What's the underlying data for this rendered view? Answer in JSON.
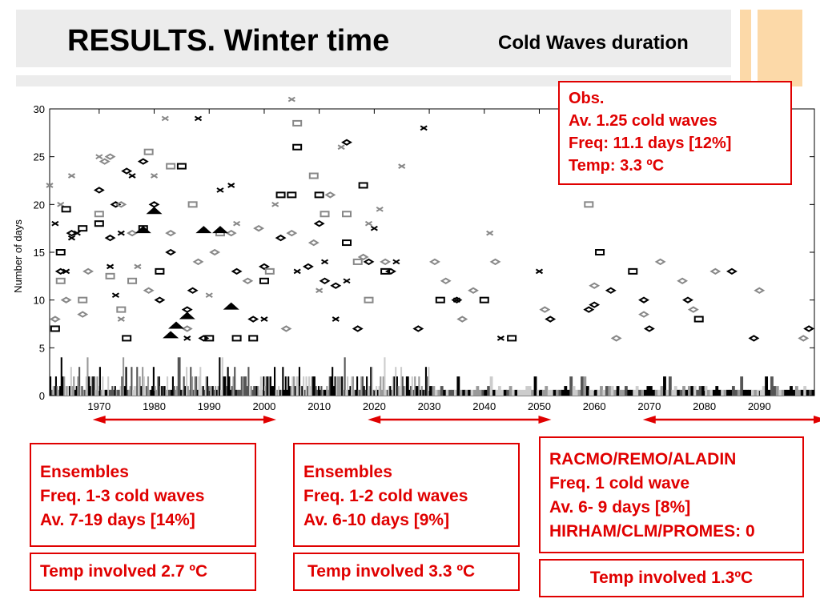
{
  "slide": {
    "title": "RESULTS. Winter time",
    "subtitle": "Cold Waves duration",
    "colors": {
      "accent_red": "#e00000",
      "header_gray": "#ececec",
      "deco_orange": "#fcd9a8"
    }
  },
  "obs_box": {
    "lines": [
      "Obs.",
      "Av. 1.25 cold waves",
      "Freq: 11.1 days [12%]",
      "Temp: 3.3 ºC"
    ]
  },
  "ensembles_1": {
    "lines": [
      "Ensembles",
      "Freq. 1-3 cold waves",
      "Av. 7-19 days [14%]"
    ]
  },
  "ensembles_2": {
    "lines": [
      "Ensembles",
      "Freq. 1-2 cold waves",
      "Av. 6-10 days [9%]"
    ]
  },
  "rcm_box": {
    "lines": [
      "RACMO/REMO/ALADIN",
      "Freq. 1 cold wave",
      "Av. 6- 9 days [8%]",
      "HIRHAM/CLM/PROMES: 0"
    ]
  },
  "temp_1": {
    "text": "Temp involved 2.7  ºC"
  },
  "temp_2": {
    "text": "Temp involved 3.3 ºC"
  },
  "temp_3": {
    "text": "Temp involved 1.3ºC"
  },
  "chart_data": {
    "type": "scatter",
    "title": "",
    "ylabel": "Number of days",
    "xlabel": "",
    "xlim": [
      1961,
      2100
    ],
    "ylim": [
      0,
      30
    ],
    "x_ticks": [
      "1970",
      "1980",
      "1990",
      "2000",
      "2010",
      "2020",
      "2030",
      "2040",
      "2050",
      "2060",
      "2070",
      "2080",
      "2090"
    ],
    "y_ticks": [
      "0",
      "5",
      "10",
      "15",
      "20",
      "25",
      "30"
    ],
    "periods": [
      [
        1971,
        2000
      ],
      [
        2021,
        2050
      ],
      [
        2071,
        2100
      ]
    ],
    "series": [
      {
        "marker": "x",
        "color": "#000000",
        "points": [
          [
            1962,
            18
          ],
          [
            1964,
            13
          ],
          [
            1965,
            16.5
          ],
          [
            1966,
            17
          ],
          [
            1972,
            13.5
          ],
          [
            1973,
            10.5
          ],
          [
            1974,
            17
          ],
          [
            1976,
            23
          ],
          [
            1986,
            6
          ],
          [
            1988,
            29
          ],
          [
            1992,
            21.5
          ],
          [
            1994,
            22
          ],
          [
            2000,
            8
          ],
          [
            2006,
            13
          ],
          [
            2011,
            14
          ],
          [
            2013,
            8
          ],
          [
            2015,
            12
          ],
          [
            2020,
            17.5
          ],
          [
            2024,
            14
          ],
          [
            2029,
            28
          ],
          [
            2035,
            10
          ],
          [
            2043,
            6
          ],
          [
            2050,
            13
          ],
          [
            2093,
            24
          ]
        ]
      },
      {
        "marker": "x",
        "color": "#888888",
        "points": [
          [
            1961,
            22
          ],
          [
            1963,
            20
          ],
          [
            1965,
            23
          ],
          [
            1970,
            25
          ],
          [
            1974,
            8
          ],
          [
            1977,
            13.5
          ],
          [
            1980,
            23
          ],
          [
            1982,
            29
          ],
          [
            1990,
            10.5
          ],
          [
            1995,
            18
          ],
          [
            2002,
            20
          ],
          [
            2005,
            31
          ],
          [
            2010,
            11
          ],
          [
            2014,
            26
          ],
          [
            2019,
            18
          ],
          [
            2021,
            19.5
          ],
          [
            2025,
            24
          ],
          [
            2041,
            17
          ]
        ]
      },
      {
        "marker": "diamond",
        "color": "#000000",
        "points": [
          [
            1963,
            13
          ],
          [
            1965,
            17
          ],
          [
            1970,
            21.5
          ],
          [
            1972,
            16.5
          ],
          [
            1973,
            20
          ],
          [
            1975,
            23.5
          ],
          [
            1978,
            24.5
          ],
          [
            1980,
            20
          ],
          [
            1981,
            10
          ],
          [
            1983,
            15
          ],
          [
            1986,
            9
          ],
          [
            1987,
            11
          ],
          [
            1989,
            6
          ],
          [
            1995,
            13
          ],
          [
            1998,
            8
          ],
          [
            2000,
            13.5
          ],
          [
            2003,
            16.5
          ],
          [
            2008,
            13.5
          ],
          [
            2010,
            18
          ],
          [
            2011,
            12
          ],
          [
            2013,
            11.5
          ],
          [
            2015,
            26.5
          ],
          [
            2017,
            7
          ],
          [
            2019,
            14
          ],
          [
            2023,
            13
          ],
          [
            2028,
            7
          ],
          [
            2035,
            10
          ],
          [
            2052,
            8
          ],
          [
            2059,
            9
          ],
          [
            2060,
            9.5
          ],
          [
            2063,
            11
          ],
          [
            2069,
            10
          ],
          [
            2070,
            7
          ],
          [
            2072,
            22.5
          ],
          [
            2077,
            10
          ],
          [
            2085,
            13
          ],
          [
            2089,
            6
          ],
          [
            2099,
            7
          ]
        ]
      },
      {
        "marker": "diamond",
        "color": "#888888",
        "points": [
          [
            1962,
            8
          ],
          [
            1964,
            10
          ],
          [
            1967,
            8.5
          ],
          [
            1968,
            13
          ],
          [
            1971,
            24.5
          ],
          [
            1972,
            25
          ],
          [
            1974,
            20
          ],
          [
            1976,
            17
          ],
          [
            1979,
            11
          ],
          [
            1983,
            17
          ],
          [
            1986,
            7
          ],
          [
            1988,
            14
          ],
          [
            1991,
            15
          ],
          [
            1994,
            17
          ],
          [
            1997,
            12
          ],
          [
            1999,
            17.5
          ],
          [
            2004,
            7
          ],
          [
            2005,
            17
          ],
          [
            2009,
            16
          ],
          [
            2012,
            21
          ],
          [
            2018,
            14.5
          ],
          [
            2022,
            14
          ],
          [
            2031,
            14
          ],
          [
            2033,
            12
          ],
          [
            2036,
            8
          ],
          [
            2038,
            11
          ],
          [
            2042,
            14
          ],
          [
            2051,
            9
          ],
          [
            2060,
            11.5
          ],
          [
            2064,
            6
          ],
          [
            2069,
            8.5
          ],
          [
            2072,
            14
          ],
          [
            2076,
            12
          ],
          [
            2078,
            9
          ],
          [
            2082,
            13
          ],
          [
            2090,
            11
          ],
          [
            2098,
            6
          ]
        ]
      },
      {
        "marker": "square",
        "color": "#000000",
        "points": [
          [
            1962,
            7
          ],
          [
            1963,
            15
          ],
          [
            1964,
            19.5
          ],
          [
            1967,
            17.5
          ],
          [
            1970,
            18
          ],
          [
            1975,
            6
          ],
          [
            1978,
            17.5
          ],
          [
            1981,
            13
          ],
          [
            1985,
            24
          ],
          [
            1990,
            6
          ],
          [
            1995,
            6
          ],
          [
            1998,
            6
          ],
          [
            2000,
            12
          ],
          [
            2003,
            21
          ],
          [
            2005,
            21
          ],
          [
            2006,
            26
          ],
          [
            2010,
            21
          ],
          [
            2015,
            16
          ],
          [
            2018,
            22
          ],
          [
            2022,
            13
          ],
          [
            2032,
            10
          ],
          [
            2040,
            10
          ],
          [
            2045,
            6
          ],
          [
            2061,
            15
          ],
          [
            2067,
            13
          ],
          [
            2079,
            8
          ]
        ]
      },
      {
        "marker": "square",
        "color": "#888888",
        "points": [
          [
            1963,
            12
          ],
          [
            1967,
            10
          ],
          [
            1970,
            19
          ],
          [
            1972,
            12.5
          ],
          [
            1974,
            9
          ],
          [
            1976,
            12
          ],
          [
            1979,
            25.5
          ],
          [
            1983,
            24
          ],
          [
            1987,
            20
          ],
          [
            1992,
            17
          ],
          [
            2001,
            13
          ],
          [
            2006,
            28.5
          ],
          [
            2009,
            23
          ],
          [
            2011,
            19
          ],
          [
            2015,
            19
          ],
          [
            2017,
            14
          ],
          [
            2019,
            10
          ],
          [
            2059,
            20
          ]
        ]
      },
      {
        "marker": "triangle",
        "color": "#000000",
        "points": [
          [
            1978,
            17
          ],
          [
            1980,
            19
          ],
          [
            1983,
            6
          ],
          [
            1984,
            7
          ],
          [
            1986,
            8
          ],
          [
            1989,
            17
          ],
          [
            1992,
            17
          ],
          [
            1994,
            9
          ]
        ]
      }
    ],
    "bars": {
      "ylim": [
        0,
        4
      ],
      "colors": [
        "#000000",
        "#555555",
        "#999999",
        "#cccccc"
      ],
      "note": "daily-count histogram per year, 0-4 days"
    }
  }
}
